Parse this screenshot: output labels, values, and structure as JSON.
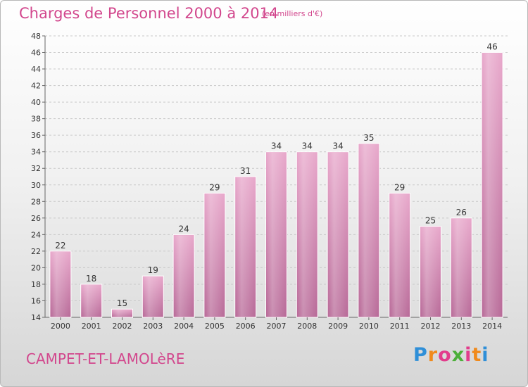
{
  "header": {
    "title": "Charges de Personnel 2000 à 2014",
    "unit": "(en milliers d'€)"
  },
  "footer": {
    "commune": "CAMPET-ET-LAMOLèRE",
    "logo": {
      "letters": [
        "P",
        "r",
        "o",
        "x",
        "i",
        "t",
        "i"
      ],
      "colors": [
        "#2f8fd8",
        "#f08a1c",
        "#e23c8c",
        "#4caf3a",
        "#e23c8c",
        "#f08a1c",
        "#2f8fd8"
      ]
    }
  },
  "chart_data": {
    "type": "bar",
    "categories": [
      "2000",
      "2001",
      "2002",
      "2003",
      "2004",
      "2005",
      "2006",
      "2007",
      "2008",
      "2009",
      "2010",
      "2011",
      "2012",
      "2013",
      "2014"
    ],
    "values": [
      22,
      18,
      15,
      19,
      24,
      29,
      31,
      34,
      34,
      34,
      35,
      29,
      25,
      26,
      46
    ],
    "title": "Charges de Personnel 2000 à 2014",
    "xlabel": "",
    "ylabel": "",
    "ylim": [
      14,
      48
    ],
    "yticks": [
      14,
      16,
      18,
      20,
      22,
      24,
      26,
      28,
      30,
      32,
      34,
      36,
      38,
      40,
      42,
      44,
      46,
      48
    ],
    "grid": true,
    "bar_color": "#d98ab5",
    "data_labels": true
  }
}
